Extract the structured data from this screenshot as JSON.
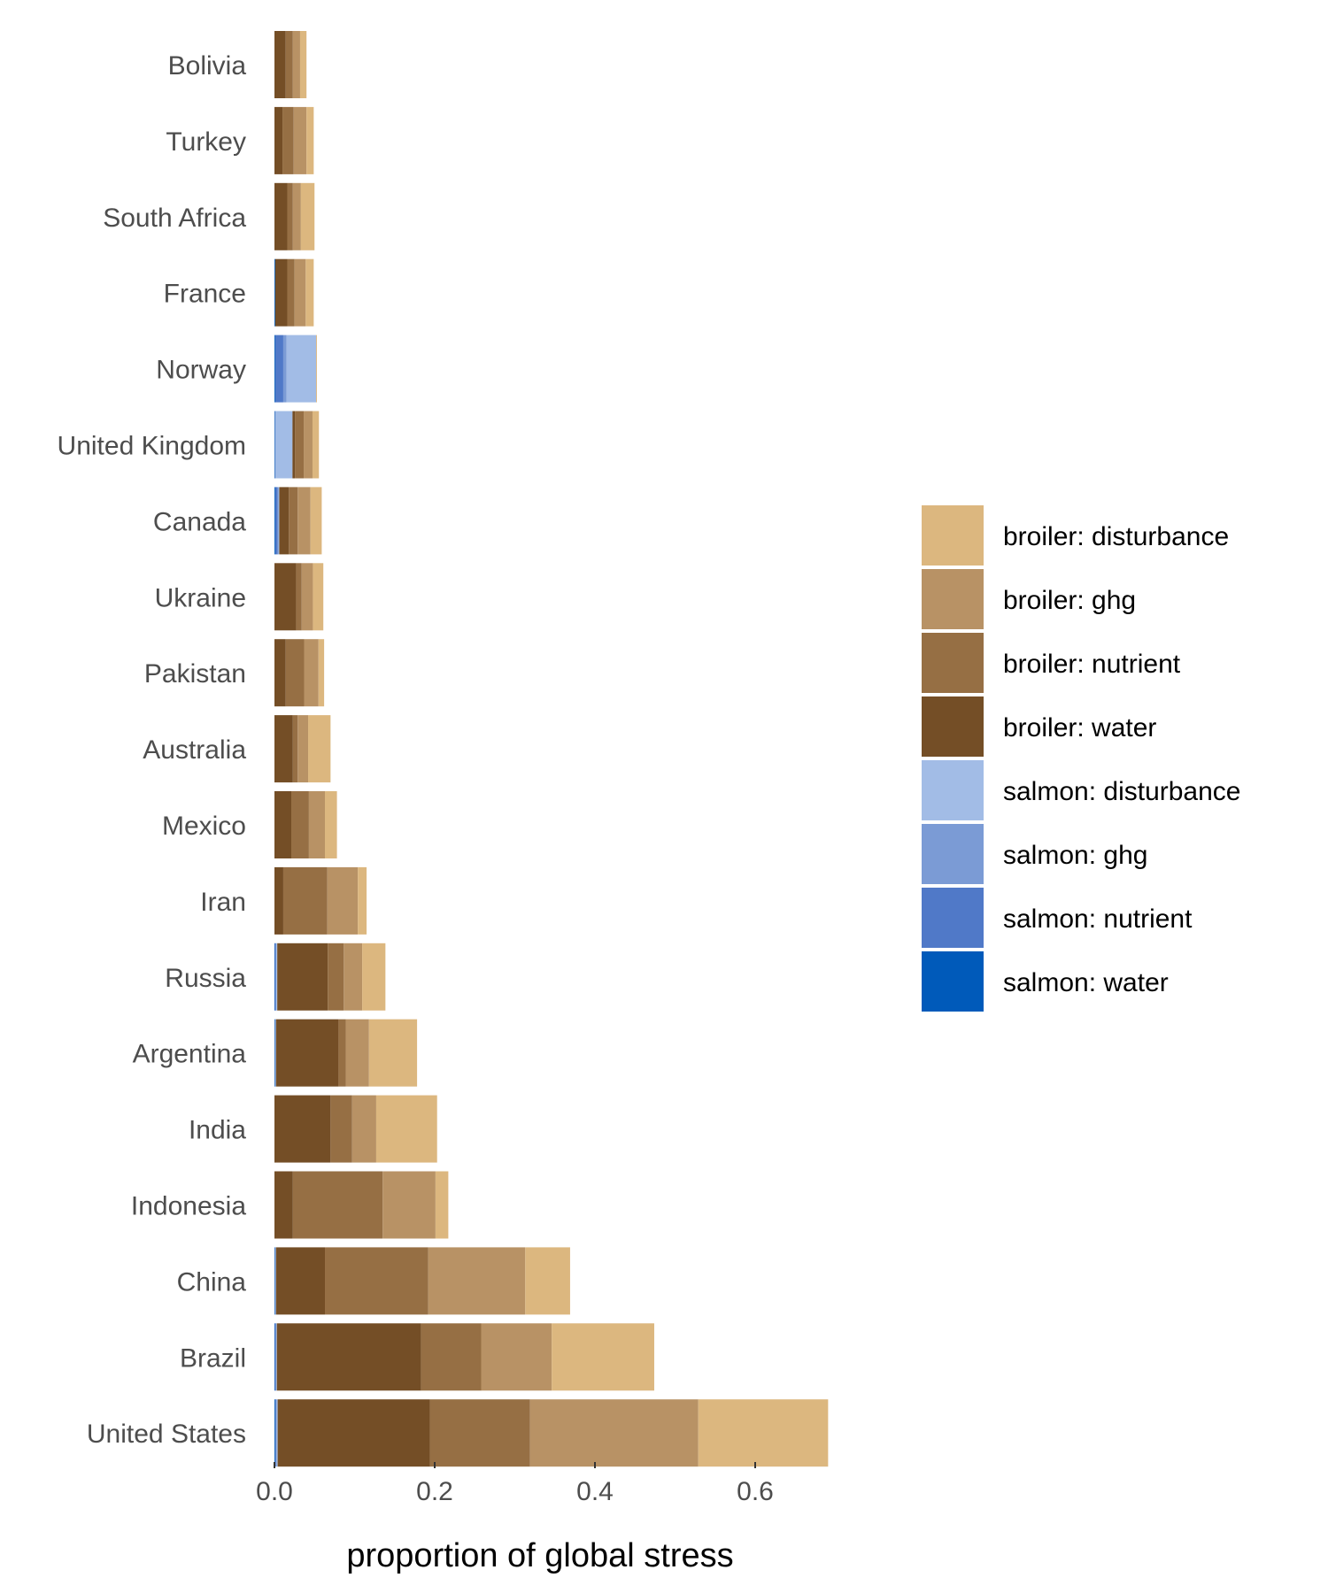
{
  "chart_data": {
    "type": "bar",
    "orientation": "horizontal",
    "stacked": true,
    "title": "",
    "xlabel": "proportion of global stress",
    "ylabel": "",
    "xlim": [
      0,
      0.7
    ],
    "x_ticks": [
      0.0,
      0.2,
      0.4,
      0.6
    ],
    "x_tick_labels": [
      "0.0",
      "0.2",
      "0.4",
      "0.6"
    ],
    "grid": false,
    "legend_position": "right",
    "categories": [
      "Bolivia",
      "Turkey",
      "South Africa",
      "France",
      "Norway",
      "United Kingdom",
      "Canada",
      "Ukraine",
      "Pakistan",
      "Australia",
      "Mexico",
      "Iran",
      "Russia",
      "Argentina",
      "India",
      "Indonesia",
      "China",
      "Brazil",
      "United States"
    ],
    "series": [
      {
        "name": "salmon: water",
        "color": "#005ABA",
        "values": [
          0,
          0,
          0,
          0.001,
          0.001,
          0.0005,
          0.001,
          0,
          0,
          0,
          0,
          0,
          0.0005,
          0.0005,
          0,
          0,
          0.0005,
          0.0005,
          0.001
        ]
      },
      {
        "name": "salmon: nutrient",
        "color": "#5079C8",
        "values": [
          0,
          0,
          0,
          0,
          0.01,
          0,
          0.003,
          0,
          0,
          0,
          0,
          0,
          0.001,
          0,
          0,
          0,
          0,
          0.001,
          0.001
        ]
      },
      {
        "name": "salmon: ghg",
        "color": "#7B9BD5",
        "values": [
          0,
          0,
          0,
          0,
          0.004,
          0.001,
          0.001,
          0,
          0,
          0,
          0,
          0,
          0.001,
          0.001,
          0,
          0,
          0.001,
          0.001,
          0.001
        ]
      },
      {
        "name": "salmon: disturbance",
        "color": "#A2BCE6",
        "values": [
          0,
          0,
          0,
          0,
          0.037,
          0.021,
          0.001,
          0,
          0,
          0,
          0,
          0,
          0.001,
          0.0005,
          0,
          0,
          0.0005,
          0.0005,
          0.001
        ]
      },
      {
        "name": "broiler: water",
        "color": "#744E26",
        "values": [
          0.014,
          0.01,
          0.016,
          0.015,
          0,
          0.003,
          0.012,
          0.027,
          0.014,
          0.023,
          0.021,
          0.011,
          0.063,
          0.078,
          0.07,
          0.023,
          0.061,
          0.18,
          0.19
        ]
      },
      {
        "name": "broiler: nutrient",
        "color": "#966F44",
        "values": [
          0.009,
          0.014,
          0.007,
          0.009,
          0,
          0.011,
          0.011,
          0.007,
          0.023,
          0.006,
          0.022,
          0.055,
          0.02,
          0.009,
          0.027,
          0.112,
          0.129,
          0.075,
          0.125
        ]
      },
      {
        "name": "broiler: ghg",
        "color": "#B89265",
        "values": [
          0.009,
          0.016,
          0.01,
          0.014,
          0,
          0.011,
          0.016,
          0.014,
          0.018,
          0.013,
          0.02,
          0.038,
          0.023,
          0.029,
          0.03,
          0.066,
          0.121,
          0.088,
          0.21
        ]
      },
      {
        "name": "broiler: disturbance",
        "color": "#DCB77F",
        "values": [
          0.008,
          0.009,
          0.017,
          0.01,
          0.001,
          0.008,
          0.014,
          0.013,
          0.007,
          0.028,
          0.015,
          0.011,
          0.029,
          0.06,
          0.076,
          0.016,
          0.056,
          0.128,
          0.162
        ]
      }
    ]
  }
}
